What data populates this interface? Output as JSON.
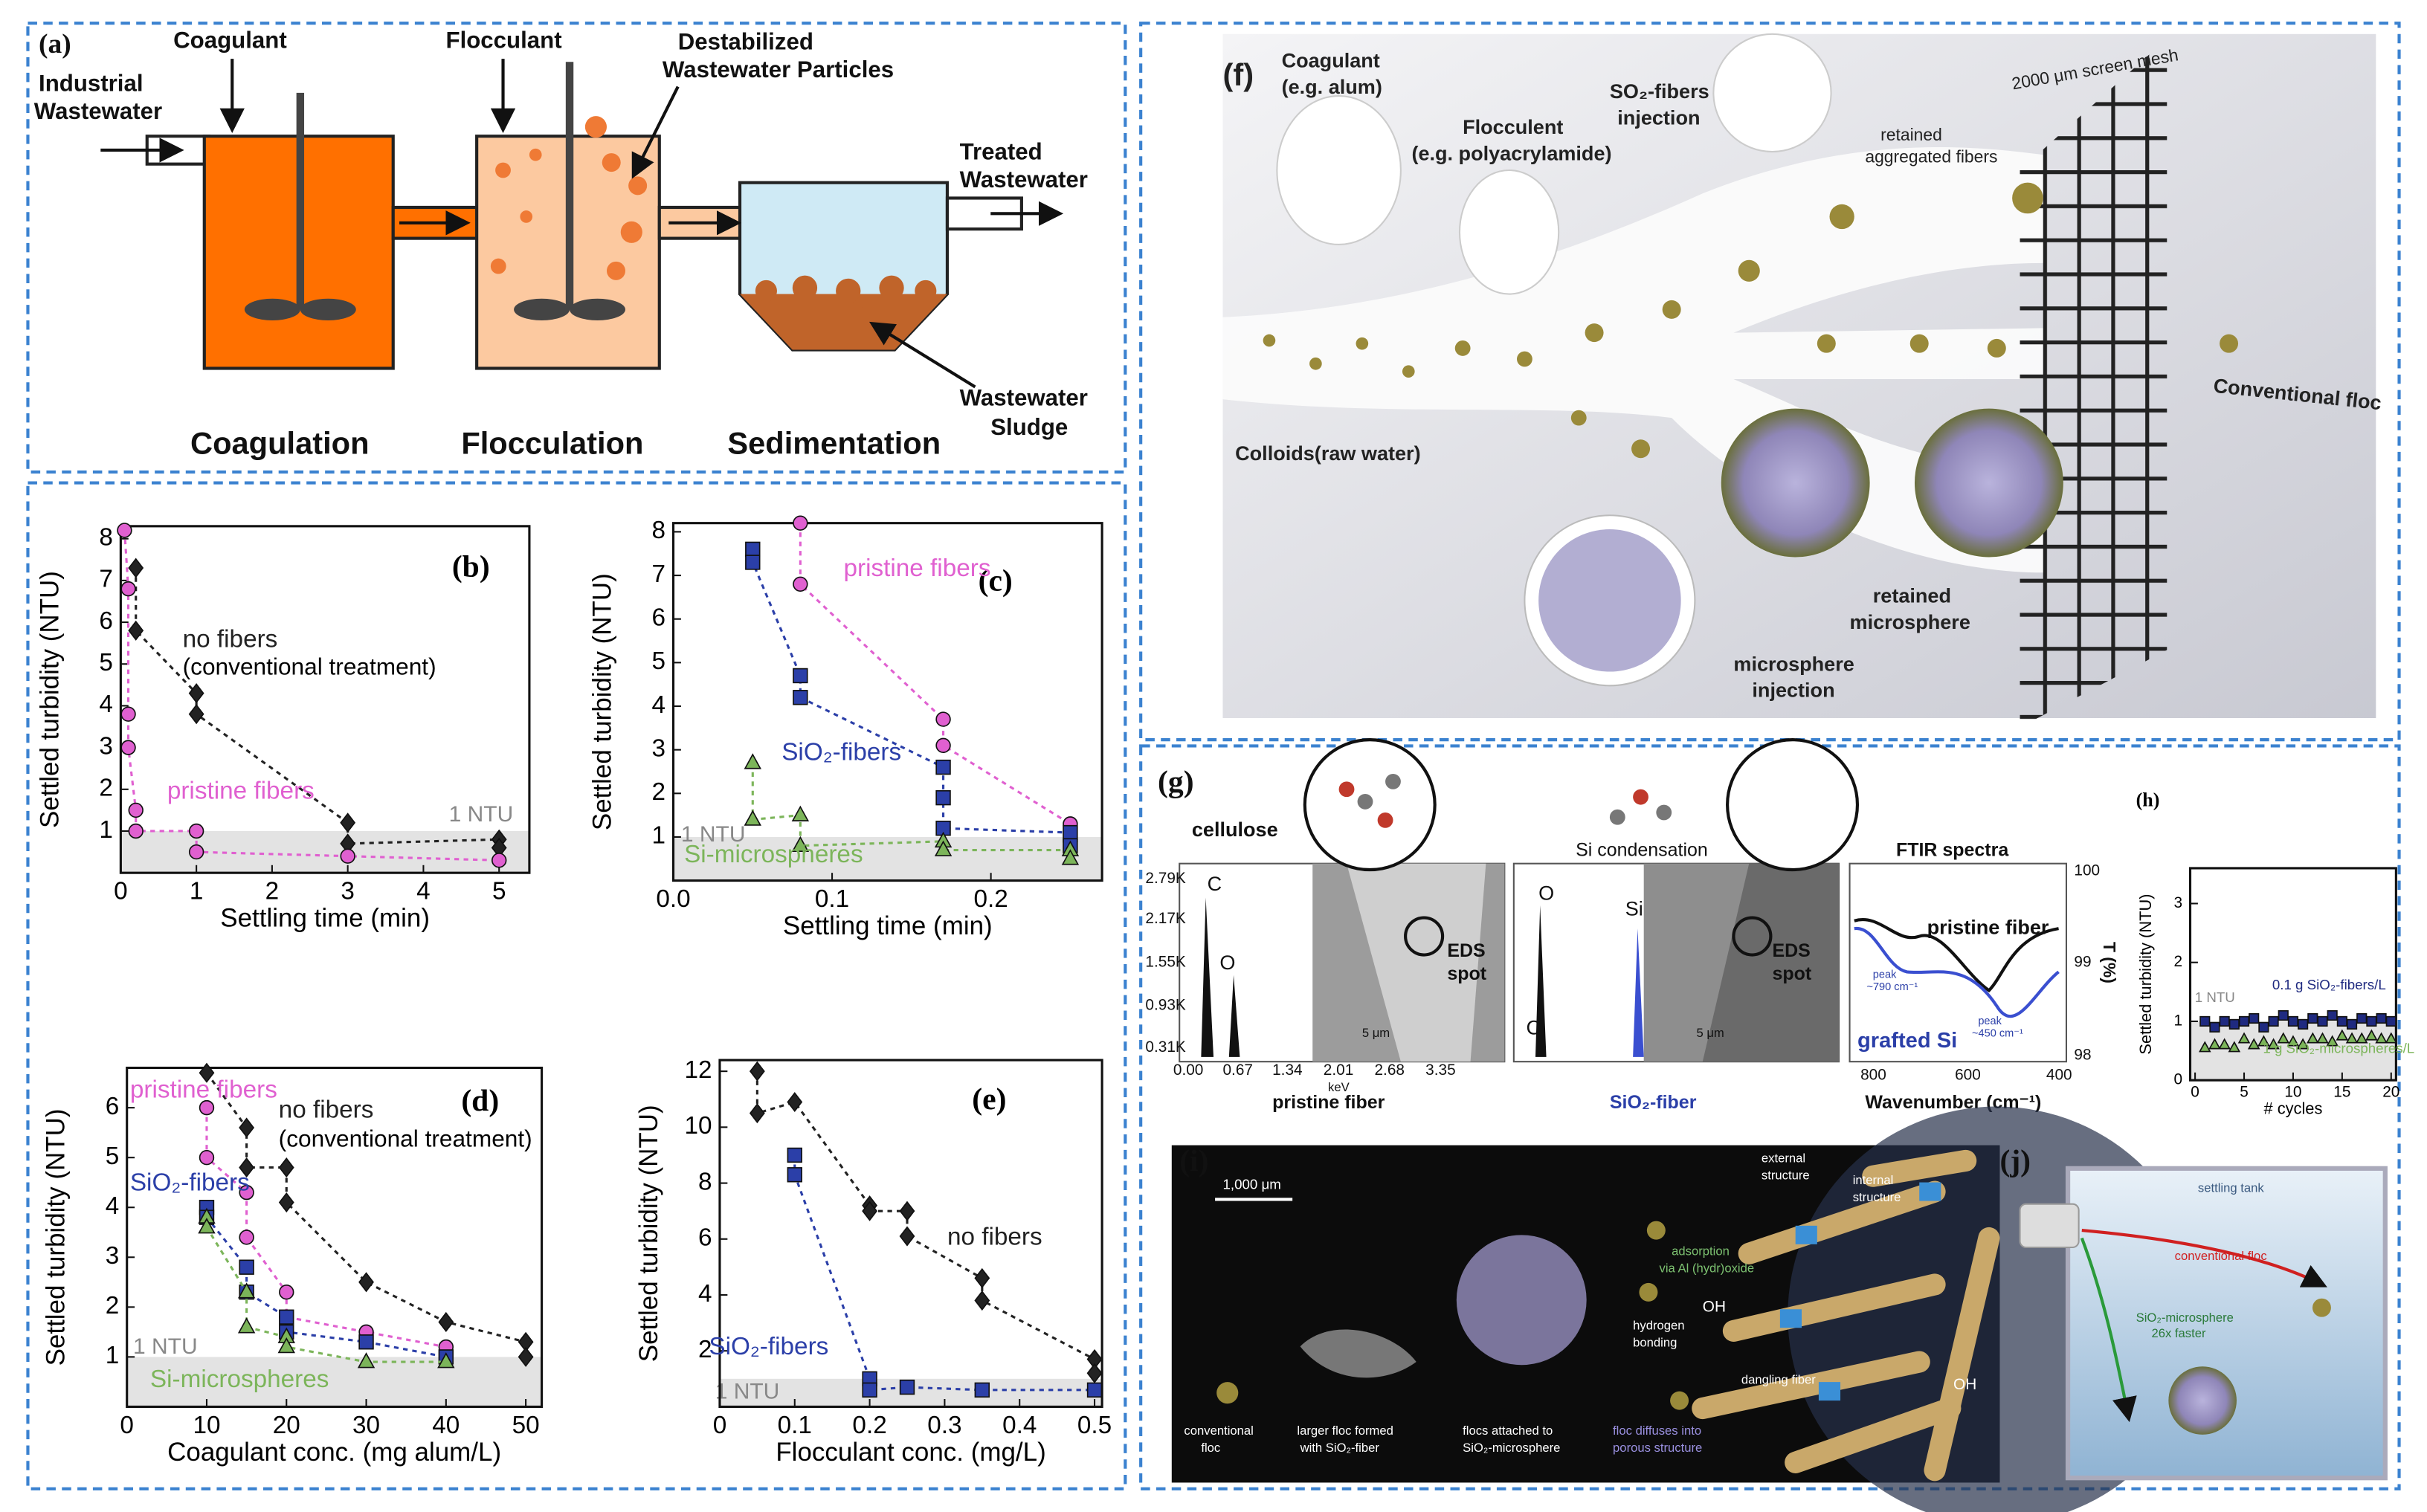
{
  "chart_data": [
    {
      "type": "scatter",
      "panel_label": "(b)",
      "x_label": "Settling time (min)",
      "y_label": "Settled turbidity (NTU)",
      "xlim": [
        0,
        5.4
      ],
      "ylim": [
        0,
        8.3
      ],
      "xticks": [
        0,
        1,
        2,
        3,
        4,
        5
      ],
      "yticks": [
        1,
        2,
        3,
        4,
        5,
        6,
        7,
        8
      ],
      "threshold": 1,
      "threshold_label": "1 NTU",
      "annotations": [
        "(conventional treatment)"
      ],
      "series": [
        {
          "name": "no fibers",
          "color": "#222222",
          "marker": "diamond",
          "dashed_line": true,
          "x": [
            0.2,
            0.2,
            1,
            1,
            3,
            3,
            5,
            5
          ],
          "values": [
            7.3,
            5.8,
            4.3,
            3.8,
            1.2,
            0.7,
            0.8,
            0.6
          ]
        },
        {
          "name": "pristine fibers",
          "color": "#e060d0",
          "marker": "circle",
          "dashed_line": true,
          "x": [
            0.05,
            0.1,
            0.1,
            0.1,
            0.2,
            0.2,
            1,
            1,
            3,
            5
          ],
          "values": [
            8.2,
            6.8,
            3.8,
            3,
            1.5,
            1,
            1,
            0.5,
            0.4,
            0.3
          ]
        }
      ]
    },
    {
      "type": "scatter",
      "panel_label": "(c)",
      "x_label": "Settling time (min)",
      "y_label": "Settled turbidity (NTU)",
      "xlim": [
        0,
        0.27
      ],
      "ylim": [
        0,
        8.2
      ],
      "xticks": [
        {
          "value": 0,
          "label": "0.0"
        },
        0.1,
        0.2
      ],
      "yticks": [
        1,
        2,
        3,
        4,
        5,
        6,
        7,
        8
      ],
      "threshold": 1,
      "threshold_label": "1 NTU",
      "annotations": [],
      "series": [
        {
          "name": "pristine fibers",
          "color": "#e060d0",
          "marker": "circle",
          "dashed_line": true,
          "x": [
            0.08,
            0.08,
            0.17,
            0.17,
            0.25,
            0.25
          ],
          "values": [
            8.2,
            6.8,
            3.7,
            3.1,
            1.3,
            0.9
          ]
        },
        {
          "name": "SiO₂-fibers",
          "color": "#2b3fa8",
          "marker": "square",
          "dashed_line": true,
          "x": [
            0.05,
            0.05,
            0.08,
            0.08,
            0.17,
            0.17,
            0.17,
            0.25,
            0.25
          ],
          "values": [
            7.6,
            7.3,
            4.7,
            4.2,
            2.6,
            1.9,
            1.2,
            1.1,
            0.8
          ]
        },
        {
          "name": "Si-microspheres",
          "color": "#7cb55a",
          "marker": "triangle",
          "dashed_line": true,
          "x": [
            0.05,
            0.05,
            0.08,
            0.08,
            0.17,
            0.17,
            0.25,
            0.25
          ],
          "values": [
            2.7,
            1.4,
            1.5,
            0.8,
            0.9,
            0.7,
            0.7,
            0.5
          ]
        }
      ]
    },
    {
      "type": "scatter",
      "panel_label": "(d)",
      "x_label": "Coagulant conc. (mg alum/L)",
      "y_label": "Settled turbidity (NTU)",
      "xlim": [
        0,
        52
      ],
      "ylim": [
        0,
        6.8
      ],
      "xticks": [
        0,
        10,
        20,
        30,
        40,
        50
      ],
      "yticks": [
        1,
        2,
        3,
        4,
        5,
        6
      ],
      "threshold": 1,
      "threshold_label": "1 NTU",
      "annotations": [
        "(conventional treatment)"
      ],
      "series": [
        {
          "name": "no fibers",
          "color": "#222222",
          "marker": "diamond",
          "dashed_line": true,
          "x": [
            10,
            15,
            15,
            20,
            20,
            30,
            40,
            50,
            50
          ],
          "values": [
            6.7,
            5.6,
            4.8,
            4.8,
            4.1,
            2.5,
            1.7,
            1.3,
            1
          ]
        },
        {
          "name": "pristine fibers",
          "color": "#e060d0",
          "marker": "circle",
          "dashed_line": true,
          "x": [
            10,
            10,
            15,
            15,
            20,
            20,
            30,
            40
          ],
          "values": [
            6,
            5,
            4.3,
            3.4,
            2.3,
            1.8,
            1.5,
            1.2
          ]
        },
        {
          "name": "SiO₂-fibers",
          "color": "#2b3fa8",
          "marker": "square",
          "dashed_line": true,
          "x": [
            10,
            10,
            15,
            15,
            20,
            20,
            30,
            40
          ],
          "values": [
            4,
            3.8,
            2.8,
            2.3,
            1.8,
            1.5,
            1.3,
            1
          ]
        },
        {
          "name": "Si-microspheres",
          "color": "#7cb55a",
          "marker": "triangle",
          "dashed_line": true,
          "x": [
            10,
            10,
            15,
            15,
            20,
            20,
            30,
            40
          ],
          "values": [
            3.8,
            3.6,
            2.3,
            1.6,
            1.4,
            1.2,
            0.9,
            0.9
          ]
        }
      ]
    },
    {
      "type": "scatter",
      "panel_label": "(e)",
      "x_label": "Flocculant conc. (mg/L)",
      "y_label": "Settled turbidity (NTU)",
      "xlim": [
        0,
        0.51
      ],
      "ylim": [
        0,
        12.4
      ],
      "xticks": [
        0,
        0.1,
        0.2,
        0.3,
        0.4,
        0.5
      ],
      "yticks": [
        2,
        4,
        6,
        8,
        10,
        12
      ],
      "threshold": 1,
      "threshold_label": "1 NTU",
      "annotations": [],
      "series": [
        {
          "name": "no fibers",
          "color": "#222222",
          "marker": "diamond",
          "dashed_line": true,
          "x": [
            0.05,
            0.05,
            0.1,
            0.2,
            0.2,
            0.25,
            0.25,
            0.35,
            0.35,
            0.5,
            0.5
          ],
          "values": [
            12,
            10.5,
            10.9,
            7.2,
            7,
            7,
            6.1,
            4.6,
            3.8,
            1.7,
            1.2
          ]
        },
        {
          "name": "SiO₂-fibers",
          "color": "#2b3fa8",
          "marker": "square",
          "dashed_line": true,
          "x": [
            0.1,
            0.1,
            0.2,
            0.2,
            0.25,
            0.35,
            0.5
          ],
          "values": [
            9,
            8.3,
            1,
            0.6,
            0.7,
            0.6,
            0.6
          ]
        }
      ]
    },
    {
      "type": "scatter",
      "panel_label": "(h)",
      "x_label": "# cycles",
      "y_label": "Settled turbidity (NTU)",
      "xlim": [
        -0.5,
        20.5
      ],
      "ylim": [
        0,
        3.6
      ],
      "xticks": [
        0,
        5,
        10,
        15,
        20
      ],
      "yticks": [
        0,
        1,
        2,
        3
      ],
      "threshold": 1,
      "threshold_label": "1 NTU",
      "annotations": [],
      "series": [
        {
          "name": "0.1 g SiO₂-fibers/L",
          "color": "#1f2a80",
          "marker": "square",
          "dashed_line": false,
          "x": [
            1,
            2,
            3,
            4,
            5,
            6,
            7,
            8,
            9,
            10,
            11,
            12,
            13,
            14,
            15,
            16,
            17,
            18,
            19,
            20
          ],
          "values": [
            1,
            0.9,
            1,
            0.95,
            1,
            1.05,
            0.9,
            1,
            1.1,
            1,
            0.95,
            1.05,
            1,
            1.1,
            1,
            0.95,
            1.05,
            1,
            1.05,
            1
          ]
        },
        {
          "name": "1 g SiO₂-microspheres/L",
          "color": "#7cb55a",
          "marker": "triangle",
          "dashed_line": false,
          "x": [
            1,
            2,
            3,
            4,
            5,
            6,
            7,
            8,
            9,
            10,
            11,
            12,
            13,
            14,
            15,
            16,
            17,
            18,
            19,
            20
          ],
          "values": [
            0.55,
            0.6,
            0.6,
            0.55,
            0.7,
            0.6,
            0.65,
            0.6,
            0.7,
            0.65,
            0.6,
            0.7,
            0.7,
            0.65,
            0.75,
            0.7,
            0.7,
            0.75,
            0.7,
            0.7
          ]
        }
      ]
    }
  ],
  "diagrams": {
    "a": {
      "label": "(a)",
      "inlet": [
        "Industrial",
        "Wastewater"
      ],
      "coagulant": "Coagulant",
      "flocculant": "Flocculant",
      "particles": [
        "Destabilized",
        "Wastewater Particles"
      ],
      "outlet": [
        "Treated",
        "Wastewater"
      ],
      "sludge": [
        "Wastewater",
        "Sludge"
      ],
      "stages": [
        "Coagulation",
        "Flocculation",
        "Sedimentation"
      ]
    },
    "f": {
      "label": "(f)",
      "coagulant": [
        "Coagulant",
        "(e.g. alum)"
      ],
      "flocculent": [
        "Flocculent",
        "(e.g. polyacrylamide)"
      ],
      "fibers": [
        "SO₂-fibers",
        "injection"
      ],
      "mesh": "2000 μm screen mesh",
      "retained_fibers": [
        "retained",
        "aggregated fibers"
      ],
      "conventional": "Conventional floc",
      "colloids": "Colloids(raw water)",
      "retained_sphere": [
        "retained",
        "microsphere"
      ],
      "sphere_injection": [
        "microsphere",
        "injection"
      ]
    },
    "g": {
      "label": "(g)",
      "cellulose": "cellulose",
      "condensation": "Si condensation",
      "ftir": "FTIR spectra",
      "eds_counts": [
        "2.79K",
        "2.17K",
        "1.55K",
        "0.93K",
        "0.31K"
      ],
      "eds_energy": [
        "0.00",
        "0.67",
        "1.34",
        "2.01",
        "2.68",
        "3.35"
      ],
      "kev": "keV",
      "peaks": [
        "C",
        "O",
        "Si"
      ],
      "spot": [
        "EDS",
        "spot"
      ],
      "scale": "5 μm",
      "pristine": "pristine fiber",
      "sio2": "SiO₂-fiber",
      "t_ticks": [
        "100",
        "99",
        "98"
      ],
      "t_label": "T (%)",
      "wn_ticks": [
        "800",
        "600",
        "400"
      ],
      "wn_label": "Wavenumber (cm⁻¹)",
      "ftir_pristine": "pristine fiber",
      "ftir_grafted": "grafted Si",
      "peak1": [
        "peak",
        "~790 cm⁻¹"
      ],
      "peak2": [
        "peak",
        "~450 cm⁻¹"
      ]
    },
    "i": {
      "label": "(i)",
      "scale": "1,000 μm",
      "conventional": [
        "conventional",
        "floc"
      ],
      "larger": [
        "larger floc formed",
        "with SiO₂-fiber"
      ],
      "attached": [
        "flocs attached to",
        "SiO₂-microsphere"
      ],
      "external": [
        "external",
        "structure"
      ],
      "internal": [
        "internal",
        "structure"
      ],
      "adsorption": [
        "adsorption",
        "via Al (hydr)oxide"
      ],
      "hydrogen": [
        "hydrogen",
        "bonding"
      ],
      "dangling": "dangling fiber",
      "diffuses": [
        "floc diffuses into",
        "porous structure"
      ],
      "oh": "OH"
    },
    "j": {
      "label": "(j)",
      "tank": "settling tank",
      "conventional": "conventional floc",
      "sphere": [
        "SiO₂-microsphere",
        "26x faster"
      ]
    }
  }
}
